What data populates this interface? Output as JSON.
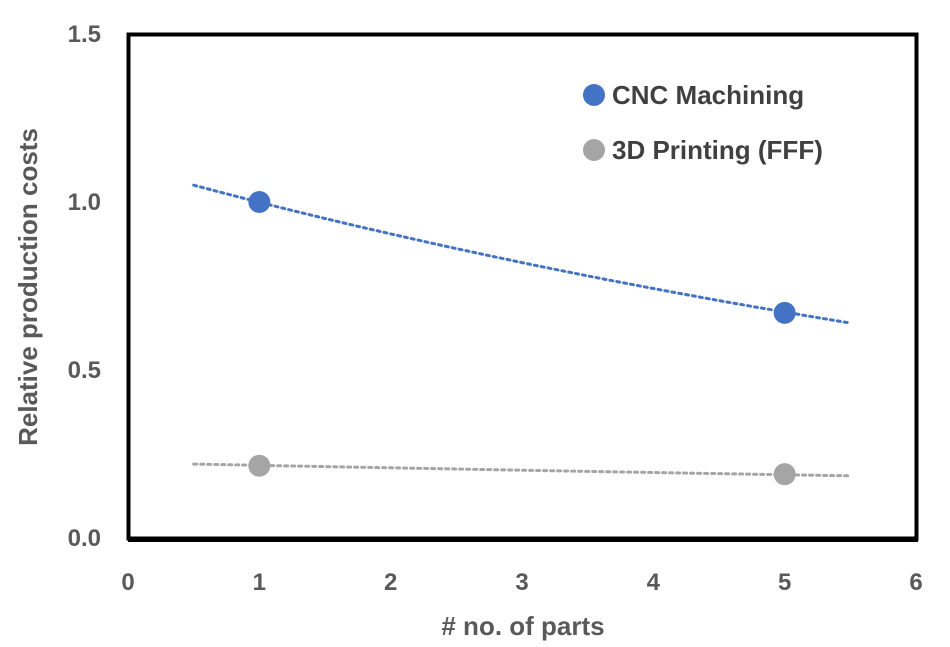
{
  "chart_data": {
    "type": "scatter",
    "title": "",
    "xlabel": "# no. of parts",
    "ylabel": "Relative production costs",
    "xlim": [
      0,
      6
    ],
    "ylim": [
      0,
      1.5
    ],
    "x_ticks": [
      "0",
      "1",
      "2",
      "3",
      "4",
      "5",
      "6"
    ],
    "y_ticks": [
      "0.0",
      "0.5",
      "1.0",
      "1.5"
    ],
    "legend_position": "top-right",
    "grid": false,
    "series": [
      {
        "name": "CNC Machining",
        "color": "#4472C4",
        "points": [
          {
            "x": 1,
            "y": 1.0
          },
          {
            "x": 5,
            "y": 0.67
          }
        ],
        "trendline": {
          "type": "dotted",
          "x_range": [
            0.5,
            5.5
          ],
          "y_range": [
            1.05,
            0.64
          ]
        }
      },
      {
        "name": "3D Printing (FFF)",
        "color": "#A5A5A5",
        "points": [
          {
            "x": 1,
            "y": 0.215
          },
          {
            "x": 5,
            "y": 0.19
          }
        ],
        "trendline": {
          "type": "dotted",
          "x_range": [
            0.5,
            5.5
          ],
          "y_range": [
            0.22,
            0.185
          ]
        }
      }
    ]
  }
}
